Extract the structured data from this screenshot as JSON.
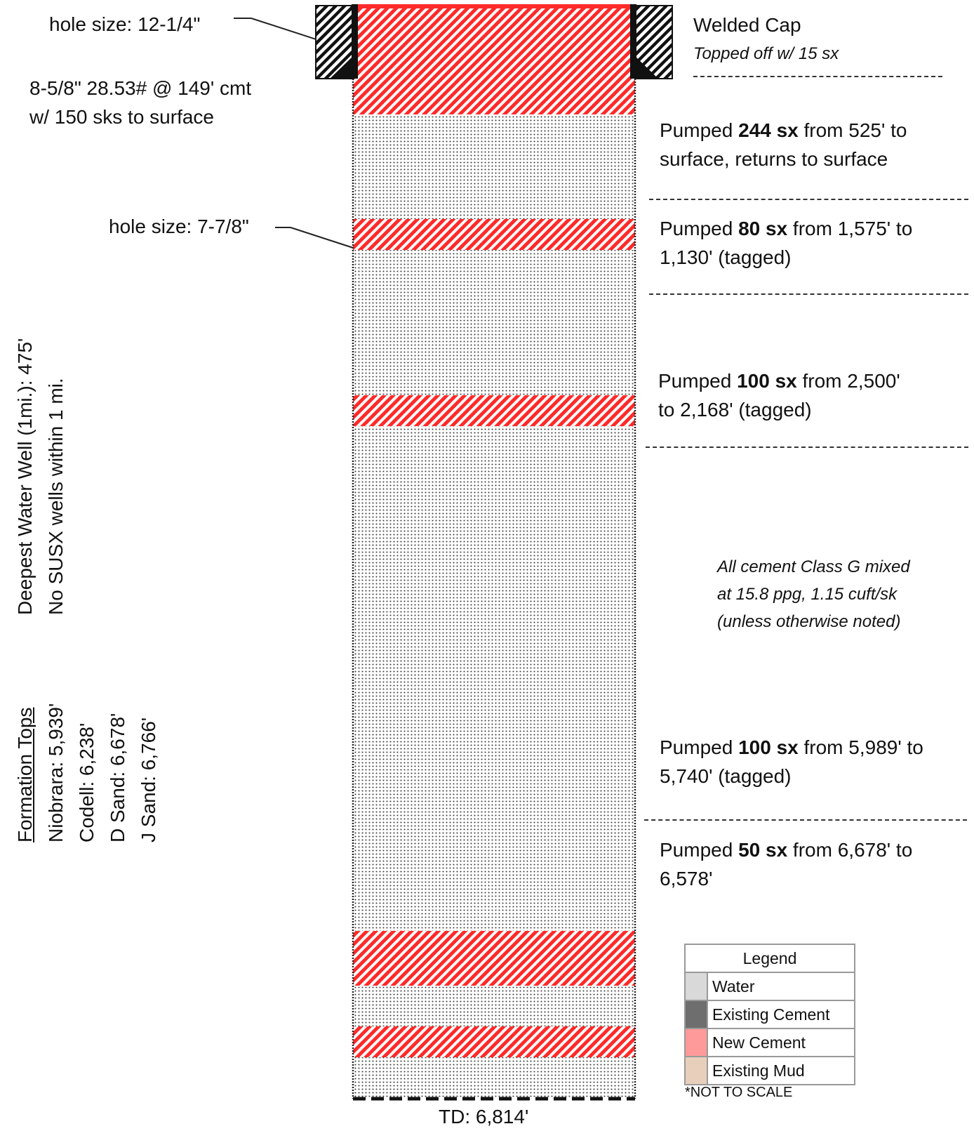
{
  "surface": {
    "hole_size_surface": "hole size: 12-1/4\"",
    "casing_line1": "8-5/8\" 28.53# @ 149' cmt",
    "casing_line2": "w/ 150 sks to surface",
    "hole_size_production": "hole size: 7-7/8\"",
    "cap_title": "Welded Cap",
    "cap_note": "Topped off w/ 15 sx"
  },
  "plugs": [
    {
      "pre": "Pumped ",
      "sx": "244 sx",
      "line1_post": " from 525' to",
      "line2": "surface, returns to surface"
    },
    {
      "pre": "Pumped ",
      "sx": "80 sx",
      "line1_post": " from 1,575' to",
      "line2": "1,130' (tagged)"
    },
    {
      "pre": "Pumped ",
      "sx": "100 sx",
      "line1_post": " from 2,500'",
      "line2": "to 2,168' (tagged)"
    },
    {
      "pre": "Pumped ",
      "sx": "100 sx",
      "line1_post": " from 5,989' to",
      "line2": "5,740' (tagged)"
    },
    {
      "pre": "Pumped ",
      "sx": "50 sx",
      "line1_post": " from 6,678' to",
      "line2": "6,578'"
    }
  ],
  "cement_note": [
    "All cement Class G mixed",
    "at 15.8 ppg, 1.15 cuft/sk",
    "(unless otherwise noted)"
  ],
  "water_well": {
    "line1": "Deepest Water Well (1mi.): 475'",
    "line2": "No SUSX wells within 1 mi."
  },
  "formation_tops": {
    "title": "Formation Tops",
    "items": [
      "Niobrara: 5,939'",
      "Codell: 6,238'",
      "D Sand: 6,678'",
      "J Sand: 6,766'"
    ]
  },
  "td": "TD: 6,814'",
  "legend": {
    "title": "Legend",
    "items": [
      {
        "name": "Water",
        "color": "#d9d9d9"
      },
      {
        "name": "Existing Cement",
        "color": "#6e6e6e"
      },
      {
        "name": "New Cement",
        "color": "#ff9a9a"
      },
      {
        "name": "Existing Mud",
        "color": "#e8cfbb"
      }
    ],
    "footnote": "*NOT TO SCALE"
  },
  "colors": {
    "new_cement": "#ff2a2a",
    "mud_dots": "#333333",
    "existing_cement": "#111111"
  }
}
